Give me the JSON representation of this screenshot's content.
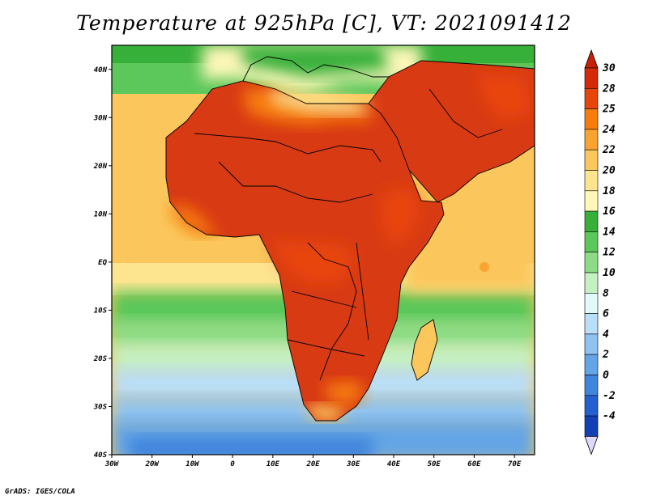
{
  "title": "Temperature at 925hPa [C], VT: 2021091412",
  "credit": "GrADS: IGES/COLA",
  "lon_ticks": [
    "30W",
    "20W",
    "10W",
    "0",
    "10E",
    "20E",
    "30E",
    "40E",
    "50E",
    "60E",
    "70E"
  ],
  "lat_ticks": [
    "40N",
    "30N",
    "20N",
    "10N",
    "EQ",
    "10S",
    "20S",
    "30S",
    "40S"
  ],
  "colorbar": {
    "labels": [
      "30",
      "28",
      "25",
      "24",
      "22",
      "20",
      "18",
      "16",
      "14",
      "12",
      "10",
      "8",
      "6",
      "4",
      "2",
      "0",
      "-2",
      "-4"
    ],
    "colors": [
      "#d42a07",
      "#e8450a",
      "#f77c0c",
      "#f9a431",
      "#fbc65b",
      "#fde48f",
      "#fdf7b9",
      "#37b03a",
      "#5cc75a",
      "#8ddc85",
      "#c4f0c2",
      "#e3f8f8",
      "#b9def7",
      "#8fc3ef",
      "#63a5e6",
      "#3f85dc",
      "#2361d0",
      "#1440b5"
    ],
    "top_color": "#c62106",
    "bottom_color": "#ded8fa"
  },
  "map": {
    "lon_range": [
      -30,
      75
    ],
    "lat_range": [
      -40,
      45
    ],
    "ocean_color": "#fbc65b",
    "land_color": "#d83a14"
  }
}
